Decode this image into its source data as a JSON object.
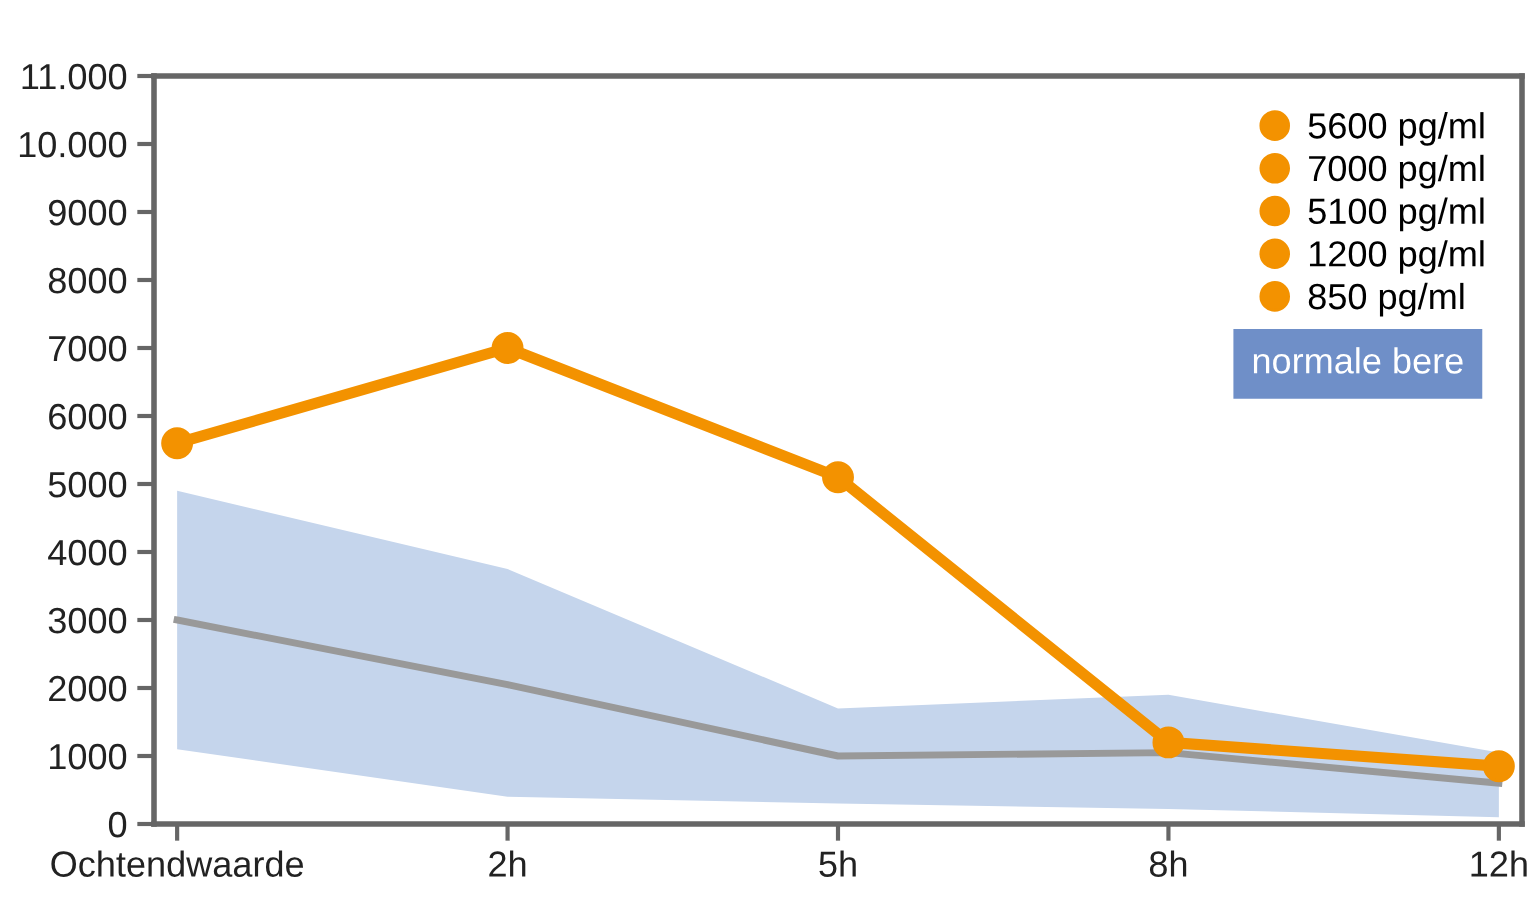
{
  "chart_data": {
    "type": "line",
    "categories": [
      "Ochtendwaarde",
      "2h",
      "5h",
      "8h",
      "12h"
    ],
    "series": [
      {
        "color": "#999999",
        "values": [
          3000,
          2050,
          1000,
          1050,
          600
        ],
        "lower": [
          1100,
          400,
          300,
          220,
          100
        ],
        "upper": [
          4900,
          3750,
          1700,
          1900,
          1050
        ]
      },
      {
        "type": "line",
        "color": "#f39200",
        "values": [
          5600,
          7000,
          5100,
          1200,
          850
        ]
      },
      {
        "name": "5600 pg/ml",
        "type": "scatter",
        "marker": "circle",
        "color": "#f39200",
        "x": [
          "Ochtendwaarde"
        ],
        "values": [
          5600
        ]
      },
      {
        "name": "7000 pg/ml",
        "type": "scatter",
        "marker": "circle",
        "color": "#f39200",
        "x": [
          "2h"
        ],
        "values": [
          7000
        ]
      },
      {
        "name": "5100 pg/ml",
        "type": "scatter",
        "marker": "circle",
        "color": "#f39200",
        "x": [
          "5h"
        ],
        "values": [
          5100
        ]
      },
      {
        "name": "1200 pg/ml",
        "type": "scatter",
        "marker": "circle",
        "color": "#f39200",
        "x": [
          "8h"
        ],
        "values": [
          1200
        ]
      },
      {
        "name": "850 pg/ml",
        "type": "scatter",
        "marker": "circle",
        "color": "#f39200",
        "x": [
          "12h"
        ],
        "values": [
          850
        ]
      }
    ],
    "annotations": [
      "normale bere"
    ],
    "ylim": [
      0,
      11000
    ],
    "yticks": [
      0,
      1000,
      2000,
      3000,
      4000,
      5000,
      6000,
      7000,
      8000,
      9000,
      {
        "value": 10000,
        "label": "10.000"
      },
      {
        "value": 11000,
        "label": "11.000"
      }
    ],
    "grid": false,
    "legend": "top right"
  }
}
